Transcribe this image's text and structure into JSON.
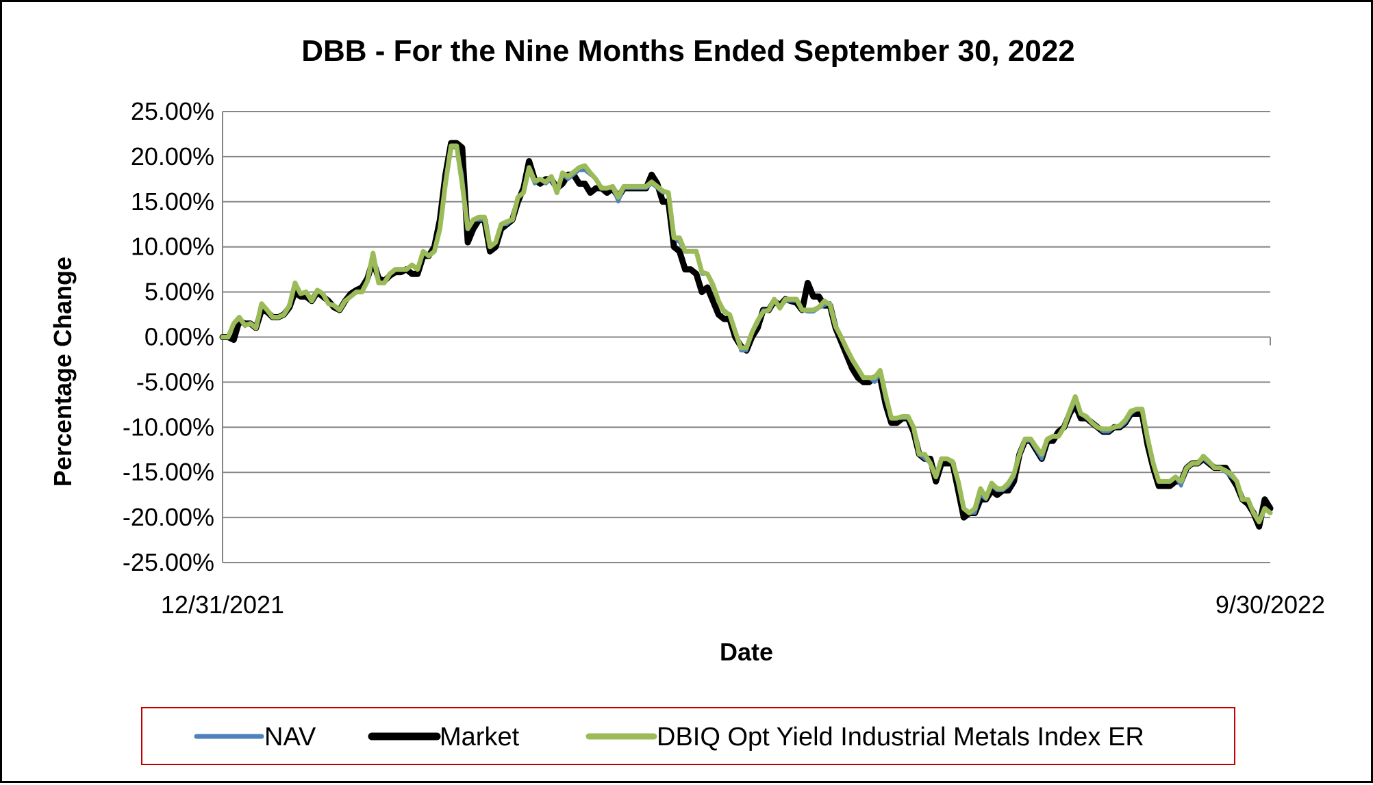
{
  "chart_data": {
    "type": "line",
    "title": "DBB - For the Nine Months Ended September 30, 2022",
    "xlabel": "Date",
    "ylabel": "Percentage Change",
    "x_tick_labels": [
      "12/31/2021",
      "9/30/2022"
    ],
    "y_ticks": [
      0.25,
      0.2,
      0.15,
      0.1,
      0.05,
      0.0,
      -0.05,
      -0.1,
      -0.15,
      -0.2,
      -0.25
    ],
    "y_tick_labels": [
      "25.00%",
      "20.00%",
      "15.00%",
      "10.00%",
      "5.00%",
      "0.00%",
      "-5.00%",
      "-10.00%",
      "-15.00%",
      "-20.00%",
      "-25.00%"
    ],
    "ylim": [
      -0.25,
      0.25
    ],
    "grid": true,
    "legend_position": "bottom",
    "x_start": "12/31/2021",
    "x_end": "9/30/2022",
    "series": [
      {
        "name": "NAV",
        "color": "#4f81bd",
        "values": [
          0,
          0,
          0.015,
          0.02,
          0.012,
          0.015,
          0.01,
          0.035,
          0.03,
          0.022,
          0.022,
          0.025,
          0.035,
          0.058,
          0.048,
          0.05,
          0.04,
          0.052,
          0.048,
          0.038,
          0.035,
          0.03,
          0.04,
          0.045,
          0.05,
          0.05,
          0.062,
          0.09,
          0.06,
          0.06,
          0.07,
          0.075,
          0.075,
          0.075,
          0.08,
          0.075,
          0.095,
          0.09,
          0.095,
          0.12,
          0.17,
          0.21,
          0.21,
          0.18,
          0.12,
          0.13,
          0.13,
          0.13,
          0.1,
          0.105,
          0.125,
          0.125,
          0.13,
          0.155,
          0.16,
          0.185,
          0.17,
          0.175,
          0.17,
          0.175,
          0.16,
          0.18,
          0.175,
          0.18,
          0.185,
          0.185,
          0.18,
          0.175,
          0.165,
          0.165,
          0.165,
          0.15,
          0.165,
          0.165,
          0.165,
          0.165,
          0.165,
          0.17,
          0.165,
          0.16,
          0.16,
          0.11,
          0.105,
          0.095,
          0.095,
          0.095,
          0.07,
          0.07,
          0.055,
          0.04,
          0.03,
          0.025,
          0.005,
          -0.015,
          -0.015,
          0.005,
          0.015,
          0.03,
          0.03,
          0.04,
          0.032,
          0.04,
          0.04,
          0.04,
          0.03,
          0.028,
          0.028,
          0.032,
          0.035,
          0.038,
          0.01,
          0.0,
          -0.015,
          -0.025,
          -0.035,
          -0.045,
          -0.045,
          -0.05,
          -0.04,
          -0.07,
          -0.09,
          -0.09,
          -0.09,
          -0.09,
          -0.1,
          -0.13,
          -0.135,
          -0.14,
          -0.155,
          -0.135,
          -0.135,
          -0.14,
          -0.16,
          -0.19,
          -0.195,
          -0.195,
          -0.175,
          -0.18,
          -0.165,
          -0.17,
          -0.17,
          -0.165,
          -0.155,
          -0.13,
          -0.115,
          -0.115,
          -0.125,
          -0.135,
          -0.115,
          -0.11,
          -0.11,
          -0.1,
          -0.085,
          -0.07,
          -0.085,
          -0.09,
          -0.095,
          -0.1,
          -0.105,
          -0.105,
          -0.1,
          -0.1,
          -0.095,
          -0.085,
          -0.08,
          -0.08,
          -0.115,
          -0.14,
          -0.16,
          -0.16,
          -0.16,
          -0.155,
          -0.165,
          -0.145,
          -0.14,
          -0.14,
          -0.135,
          -0.14,
          -0.145,
          -0.145,
          -0.15,
          -0.155,
          -0.16,
          -0.18,
          -0.18,
          -0.195,
          -0.205,
          -0.19,
          -0.195
        ]
      },
      {
        "name": "Market",
        "color": "#000000",
        "values": [
          0,
          0,
          -0.003,
          0.018,
          0.015,
          0.015,
          0.01,
          0.03,
          0.028,
          0.022,
          0.022,
          0.025,
          0.033,
          0.05,
          0.045,
          0.045,
          0.04,
          0.05,
          0.045,
          0.04,
          0.033,
          0.03,
          0.04,
          0.048,
          0.052,
          0.055,
          0.065,
          0.085,
          0.065,
          0.062,
          0.068,
          0.072,
          0.072,
          0.075,
          0.07,
          0.07,
          0.09,
          0.09,
          0.1,
          0.13,
          0.18,
          0.215,
          0.215,
          0.21,
          0.105,
          0.12,
          0.13,
          0.13,
          0.095,
          0.1,
          0.12,
          0.125,
          0.13,
          0.15,
          0.165,
          0.195,
          0.175,
          0.17,
          0.175,
          0.175,
          0.165,
          0.17,
          0.18,
          0.18,
          0.17,
          0.17,
          0.16,
          0.165,
          0.165,
          0.16,
          0.165,
          0.155,
          0.165,
          0.165,
          0.165,
          0.165,
          0.165,
          0.18,
          0.17,
          0.15,
          0.15,
          0.1,
          0.095,
          0.075,
          0.075,
          0.07,
          0.05,
          0.055,
          0.04,
          0.025,
          0.02,
          0.02,
          0.0,
          -0.01,
          -0.015,
          0.0,
          0.01,
          0.03,
          0.03,
          0.04,
          0.035,
          0.042,
          0.04,
          0.038,
          0.03,
          0.06,
          0.045,
          0.045,
          0.035,
          0.035,
          0.01,
          -0.005,
          -0.02,
          -0.035,
          -0.045,
          -0.05,
          -0.05,
          -0.045,
          -0.045,
          -0.075,
          -0.095,
          -0.095,
          -0.09,
          -0.09,
          -0.105,
          -0.13,
          -0.135,
          -0.135,
          -0.16,
          -0.14,
          -0.14,
          -0.14,
          -0.17,
          -0.2,
          -0.195,
          -0.195,
          -0.18,
          -0.18,
          -0.17,
          -0.175,
          -0.17,
          -0.17,
          -0.16,
          -0.13,
          -0.115,
          -0.115,
          -0.125,
          -0.135,
          -0.115,
          -0.115,
          -0.105,
          -0.1,
          -0.085,
          -0.075,
          -0.09,
          -0.09,
          -0.095,
          -0.1,
          -0.105,
          -0.105,
          -0.1,
          -0.1,
          -0.095,
          -0.085,
          -0.085,
          -0.085,
          -0.12,
          -0.145,
          -0.165,
          -0.165,
          -0.165,
          -0.16,
          -0.16,
          -0.145,
          -0.14,
          -0.14,
          -0.135,
          -0.14,
          -0.145,
          -0.145,
          -0.145,
          -0.155,
          -0.165,
          -0.18,
          -0.185,
          -0.195,
          -0.21,
          -0.18,
          -0.19
        ]
      },
      {
        "name": "DBIQ Opt Yield Industrial Metals Index ER",
        "color": "#9bbb59",
        "values": [
          0,
          0,
          0.015,
          0.022,
          0.013,
          0.015,
          0.01,
          0.037,
          0.03,
          0.022,
          0.022,
          0.025,
          0.035,
          0.06,
          0.048,
          0.05,
          0.04,
          0.052,
          0.048,
          0.037,
          0.035,
          0.03,
          0.04,
          0.045,
          0.05,
          0.05,
          0.062,
          0.093,
          0.06,
          0.06,
          0.07,
          0.075,
          0.075,
          0.075,
          0.08,
          0.075,
          0.095,
          0.09,
          0.095,
          0.12,
          0.17,
          0.212,
          0.212,
          0.17,
          0.12,
          0.13,
          0.133,
          0.133,
          0.1,
          0.105,
          0.125,
          0.128,
          0.13,
          0.155,
          0.16,
          0.188,
          0.173,
          0.175,
          0.172,
          0.178,
          0.16,
          0.182,
          0.178,
          0.183,
          0.188,
          0.19,
          0.182,
          0.175,
          0.165,
          0.165,
          0.167,
          0.155,
          0.167,
          0.167,
          0.167,
          0.167,
          0.167,
          0.172,
          0.167,
          0.162,
          0.16,
          0.11,
          0.11,
          0.095,
          0.095,
          0.095,
          0.072,
          0.07,
          0.058,
          0.04,
          0.028,
          0.025,
          0.006,
          -0.012,
          -0.012,
          0.005,
          0.018,
          0.028,
          0.03,
          0.042,
          0.032,
          0.042,
          0.042,
          0.042,
          0.03,
          0.03,
          0.03,
          0.033,
          0.04,
          0.036,
          0.012,
          0.0,
          -0.013,
          -0.025,
          -0.035,
          -0.045,
          -0.045,
          -0.045,
          -0.037,
          -0.065,
          -0.09,
          -0.09,
          -0.088,
          -0.088,
          -0.1,
          -0.13,
          -0.13,
          -0.14,
          -0.155,
          -0.135,
          -0.135,
          -0.138,
          -0.16,
          -0.19,
          -0.195,
          -0.19,
          -0.168,
          -0.178,
          -0.162,
          -0.168,
          -0.168,
          -0.162,
          -0.152,
          -0.13,
          -0.113,
          -0.113,
          -0.122,
          -0.13,
          -0.113,
          -0.11,
          -0.11,
          -0.1,
          -0.082,
          -0.066,
          -0.085,
          -0.088,
          -0.095,
          -0.1,
          -0.102,
          -0.102,
          -0.1,
          -0.098,
          -0.092,
          -0.082,
          -0.08,
          -0.08,
          -0.113,
          -0.14,
          -0.16,
          -0.16,
          -0.16,
          -0.155,
          -0.16,
          -0.145,
          -0.14,
          -0.14,
          -0.132,
          -0.138,
          -0.145,
          -0.145,
          -0.148,
          -0.152,
          -0.16,
          -0.18,
          -0.18,
          -0.195,
          -0.205,
          -0.19,
          -0.195
        ]
      }
    ]
  }
}
